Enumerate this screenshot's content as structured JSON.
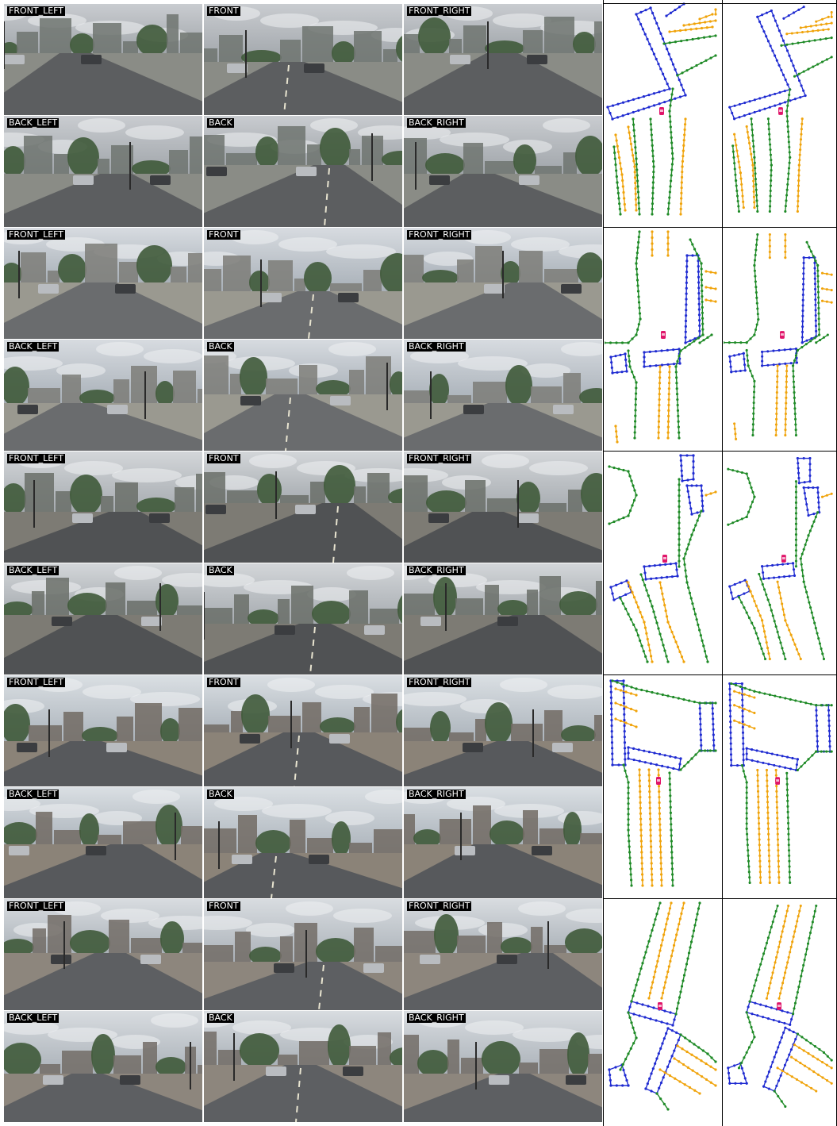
{
  "colors": {
    "crossing": "#1f2bd1",
    "boundary": "#1e8a26",
    "divider": "#f0a30a",
    "ego": "#e0156a"
  },
  "camera_labels": [
    "FRONT_LEFT",
    "FRONT",
    "FRONT_RIGHT",
    "BACK_LEFT",
    "BACK",
    "BACK_RIGHT"
  ],
  "samples": [
    {
      "cams": [
        "FRONT_LEFT",
        "FRONT",
        "FRONT_RIGHT",
        "BACK_LEFT",
        "BACK",
        "BACK_RIGHT"
      ]
    },
    {
      "cams": [
        "FRONT_LEFT",
        "FRONT",
        "FRONT_RIGHT",
        "BACK_LEFT",
        "BACK",
        "BACK_RIGHT"
      ]
    },
    {
      "cams": [
        "FRONT_LEFT",
        "FRONT",
        "FRONT_RIGHT",
        "BACK_LEFT",
        "BACK",
        "BACK_RIGHT"
      ]
    },
    {
      "cams": [
        "FRONT_LEFT",
        "FRONT",
        "FRONT_RIGHT",
        "BACK_LEFT",
        "BACK",
        "BACK_RIGHT"
      ]
    },
    {
      "cams": [
        "FRONT_LEFT",
        "FRONT",
        "FRONT_RIGHT",
        "BACK_LEFT",
        "BACK",
        "BACK_RIGHT"
      ]
    }
  ]
}
